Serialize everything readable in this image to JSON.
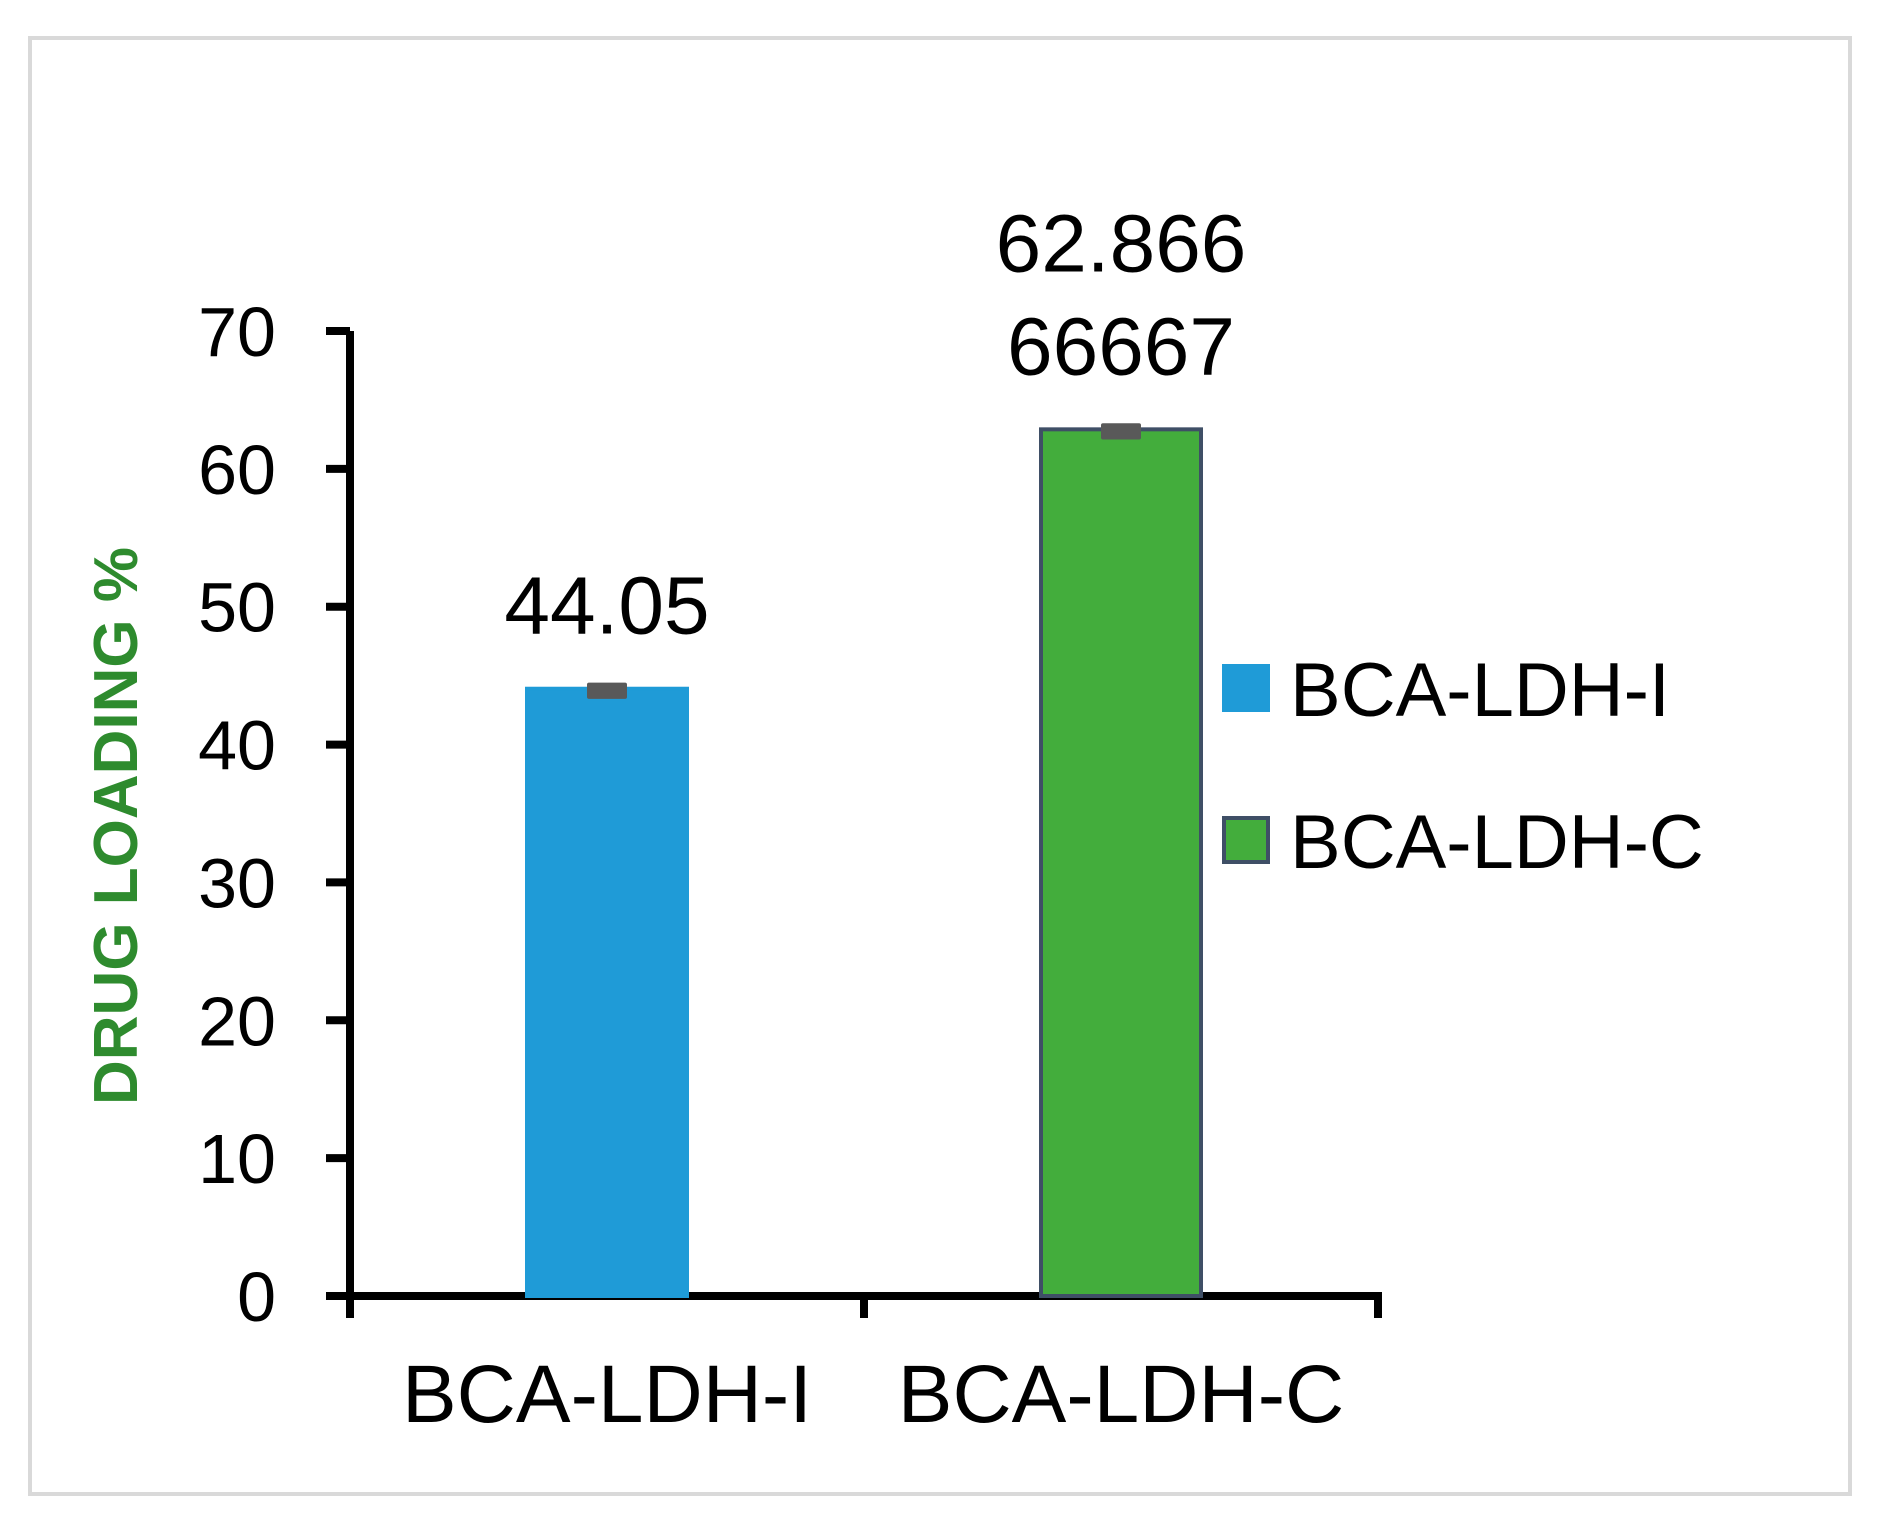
{
  "chart_data": {
    "type": "bar",
    "title": "",
    "xlabel": "",
    "ylabel": "DRUG LOADING %",
    "ylim": [
      0,
      70
    ],
    "yticks": [
      0,
      10,
      20,
      30,
      40,
      50,
      60,
      70
    ],
    "ytick_labels": [
      "0",
      "10",
      "20",
      "30",
      "40",
      "50",
      "60",
      "70"
    ],
    "categories": [
      "BCA-LDH-I",
      "BCA-LDH-C"
    ],
    "values": [
      44.05,
      62.86666667
    ],
    "error": [
      0.3,
      0.3
    ],
    "data_labels": [
      [
        "44.05"
      ],
      [
        "62.866",
        "66667"
      ]
    ],
    "series": [
      {
        "name": "BCA-LDH-I",
        "value": 44.05,
        "color": "#1f9bd7",
        "border": "#1f9bd7"
      },
      {
        "name": "BCA-LDH-C",
        "value": 62.86666667,
        "color": "#43ad3c",
        "border": "#3f4f66"
      }
    ],
    "legend": {
      "position": "right",
      "entries": [
        "BCA-LDH-I",
        "BCA-LDH-C"
      ]
    },
    "grid": false,
    "colors": {
      "ylabel": "#2e8b2e",
      "axis": "#000000",
      "error_bar": "#595959",
      "frame": "#d9d9d9"
    }
  }
}
